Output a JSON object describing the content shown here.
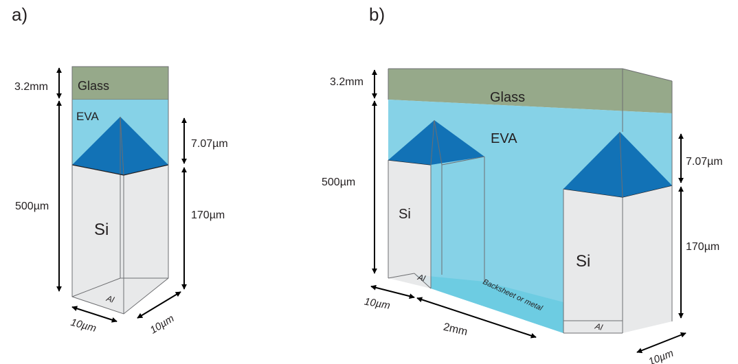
{
  "panels": {
    "a": {
      "label": "a)",
      "layers": {
        "glass": "Glass",
        "eva": "EVA",
        "si": "Si",
        "al": "Al"
      },
      "dimensions": {
        "glass_thickness": "3.2mm",
        "total_height": "500µm",
        "pyramid_height": "7.07µm",
        "si_height": "170µm",
        "width_x": "10µm",
        "width_y": "10µm"
      }
    },
    "b": {
      "label": "b)",
      "layers": {
        "glass": "Glass",
        "eva": "EVA",
        "si_left": "Si",
        "si_right": "Si",
        "al": "Al",
        "backsheet": "Backsheet or metal"
      },
      "dimensions": {
        "glass_thickness": "3.2mm",
        "total_height": "500µm",
        "pyramid_height": "7.07µm",
        "si_height": "170µm",
        "width_left": "10µm",
        "gap": "2mm",
        "width_right": "10µm"
      }
    }
  },
  "colors": {
    "glass": "#96a98a",
    "eva": "#7fd0e6",
    "pyramid": "#1272b6",
    "si": "#e6e7e8",
    "backsheet": "#6ccbe2"
  }
}
